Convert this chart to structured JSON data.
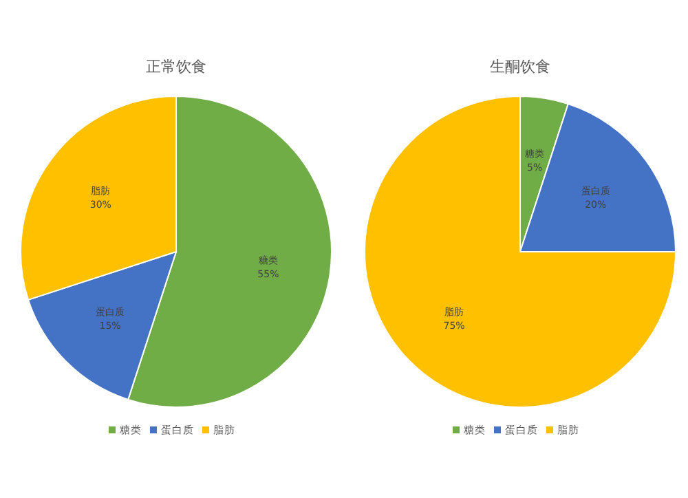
{
  "chart_data": [
    {
      "type": "pie",
      "title": "正常饮食",
      "categories": [
        "糖类",
        "蛋白质",
        "脂肪"
      ],
      "values": [
        55,
        15,
        30
      ],
      "value_labels": [
        "55%",
        "15%",
        "30%"
      ],
      "colors": [
        "#70ad47",
        "#4472c4",
        "#ffc000"
      ],
      "legend": "bottom"
    },
    {
      "type": "pie",
      "title": "生酮饮食",
      "categories": [
        "糖类",
        "蛋白质",
        "脂肪"
      ],
      "values": [
        5,
        20,
        75
      ],
      "value_labels": [
        "5%",
        "20%",
        "75%"
      ],
      "colors": [
        "#70ad47",
        "#4472c4",
        "#ffc000"
      ],
      "legend": "bottom"
    }
  ]
}
